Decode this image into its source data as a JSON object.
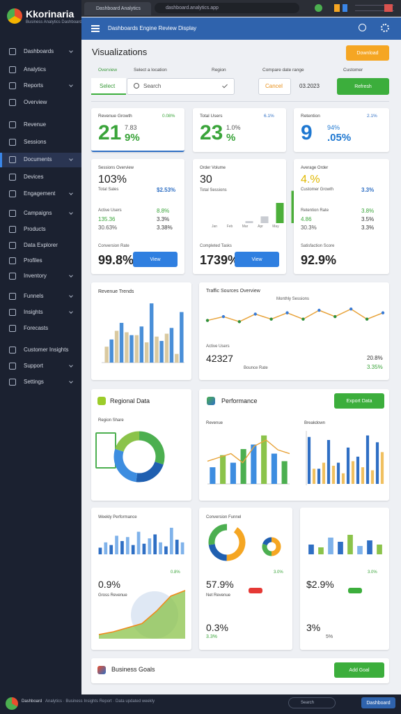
{
  "browser": {
    "tab": "Dashboard Analytics",
    "address": "dashboard.analytics.app"
  },
  "sidebar": {
    "brand": "Kkorinaria",
    "tagline": "Business Analytics Dashboard",
    "items": [
      "Dashboards",
      "Analytics",
      "Reports",
      "Overview",
      "Revenue",
      "Sessions",
      "Documents",
      "Devices",
      "Engagement",
      "Campaigns",
      "Products",
      "Data Explorer",
      "Profiles",
      "Inventory",
      "Funnels",
      "Insights",
      "Forecasts",
      "Customer Insights",
      "Support",
      "Settings"
    ]
  },
  "header": {
    "title": "Dashboards Engine Review Display"
  },
  "page": {
    "title": "Visualizations",
    "download": "Download"
  },
  "filters": {
    "labels": [
      "Overview",
      "Select a location",
      "Region",
      "Compare date range",
      "Customer"
    ],
    "tab": "Select",
    "search": "Search",
    "cancel": "Cancel",
    "date": "03.2023",
    "apply": "Refresh"
  },
  "kpis": [
    {
      "label": "Revenue Growth",
      "change": "0.08%",
      "value": "21",
      "sub1": "7.83",
      "sub2": "9%"
    },
    {
      "label": "Total Users",
      "change": "6.1%",
      "value": "23",
      "sub1": "1.0%",
      "sub2": "%"
    },
    {
      "label": "Retention",
      "change": "2.1%",
      "value": "9",
      "sub1": "94%",
      "sub2": ".05%"
    }
  ],
  "panels": [
    {
      "label": "Sessions Overview",
      "value": "103%",
      "rows": [
        [
          "Total Sales",
          "$2.53%"
        ],
        [
          "Active Users",
          "8.8%"
        ],
        [
          "135.36",
          "3.3%"
        ],
        [
          "30.63%",
          "3.38%"
        ]
      ],
      "footer_label": "Conversion Rate",
      "footer_value": "99.8%",
      "button": "View"
    },
    {
      "label": "Order Volume",
      "value": "30",
      "caption": "Total Sessions",
      "chart": {
        "type": "bar",
        "categories": [
          "Jan",
          "Feb",
          "Mar",
          "Apr",
          "May"
        ],
        "values": [
          3,
          10,
          30,
          48,
          58
        ],
        "colors": [
          "#c9ccd2",
          "#c9ccd2",
          "#4caf3a",
          "#4caf3a",
          "#4caf3a"
        ]
      },
      "footer_label": "Completed Tasks",
      "footer_value": "1739%",
      "button": "View"
    },
    {
      "label": "Average Order",
      "value": "4.%",
      "rows": [
        [
          "Customer Growth",
          "3.3%"
        ],
        [
          "Retention Rate",
          "3.8%"
        ],
        [
          "4.86",
          "3.5%"
        ],
        [
          "30.3%",
          "3.3%"
        ]
      ],
      "footer_label": "Satisfaction Score",
      "footer_value": "92.9%"
    }
  ],
  "revenue_trends": {
    "title": "Revenue Trends",
    "type": "bar",
    "series": [
      {
        "color": "#4a8fd8",
        "values": [
          32,
          55,
          38,
          50,
          82,
          30,
          48,
          70
        ]
      },
      {
        "color": "#d9c9a0",
        "values": [
          22,
          44,
          42,
          38,
          28,
          36,
          40,
          12
        ]
      }
    ]
  },
  "traffic": {
    "title": "Traffic Sources Overview",
    "subtitle": "Monthly Sessions",
    "type": "line",
    "color": "#e8a33a",
    "dot_color": "#2f8f3a",
    "values": [
      28,
      34,
      26,
      38,
      30,
      40,
      30,
      44,
      34,
      46,
      30,
      40
    ],
    "stat_label": "Active Users",
    "stat_value": "42327",
    "stat_caption": "Bounce Rate",
    "right1": "20.8%",
    "right2": "3.35%"
  },
  "regional": {
    "title": "Regional Data",
    "subtitle": "Region Share",
    "type": "pie",
    "values": [
      30,
      22,
      28,
      20
    ],
    "colors": [
      "#4caf50",
      "#1f5fb0",
      "#3d8de0",
      "#8bc34a"
    ]
  },
  "performance": {
    "title": "Performance",
    "button": "Export Data",
    "subtitles": [
      "Revenue",
      "Breakdown"
    ],
    "combo": {
      "type": "bar",
      "values": [
        22,
        38,
        28,
        46,
        52,
        64,
        40,
        30
      ],
      "colors": [
        "#3d8de0",
        "#8bc34a",
        "#3d8de0",
        "#4caf50"
      ],
      "line": [
        30,
        35,
        40,
        28,
        50,
        58,
        45,
        40
      ],
      "line_color": "#e8a33a"
    },
    "grouped": {
      "type": "bar",
      "series": [
        {
          "color": "#2f6fc4",
          "values": [
            62,
            20,
            58,
            28,
            48,
            36,
            64,
            55
          ]
        },
        {
          "color": "#f0c060",
          "values": [
            20,
            28,
            24,
            14,
            30,
            22,
            18,
            42
          ]
        }
      ]
    }
  },
  "weekly": {
    "title": "Weekly Performance",
    "bars": {
      "type": "bar",
      "values": [
        10,
        18,
        14,
        28,
        20,
        26,
        14,
        34,
        16,
        24,
        30,
        18,
        12,
        40,
        22,
        18
      ],
      "colors": [
        "#2f6fc4",
        "#7fb2ea"
      ]
    },
    "value": "0.9%",
    "badge": "0.8%",
    "caption": "Gross Revenue",
    "area": {
      "type": "area",
      "values": [
        6,
        10,
        16,
        22,
        40,
        62,
        70
      ],
      "color": "#f08a1c",
      "fill": "#8bc34a"
    }
  },
  "funnel": {
    "title": "Conversion Funnel",
    "donut": {
      "type": "pie",
      "values": [
        45,
        25,
        30
      ],
      "colors": [
        "#f5a623",
        "#1f5fb0",
        "#4caf50"
      ]
    },
    "donut2": {
      "type": "pie",
      "values": [
        50,
        30,
        20
      ],
      "colors": [
        "#f5a623",
        "#4caf50",
        "#1f5fb0"
      ]
    },
    "badge": "3.0%",
    "value": "57.9%",
    "label": "Net Revenue",
    "value2": "0.3%",
    "sub": "3.3%"
  },
  "goals_card": {
    "bars": {
      "type": "bar",
      "values": [
        14,
        10,
        24,
        18,
        28,
        12,
        20,
        14
      ],
      "colors": [
        "#2f6fc4",
        "#8bc34a",
        "#7fb2ea"
      ]
    },
    "badge": "3.0%",
    "value": "$2.9%",
    "value2": "3%",
    "sub": "5%"
  },
  "footer_card": {
    "title": "Business Goals",
    "button": "Add Goal"
  },
  "bottom": {
    "brand": "Dashboard",
    "text": "Analytics · Business Insights Report · Data updated weekly",
    "search": "Search",
    "button": "Dashboard"
  }
}
